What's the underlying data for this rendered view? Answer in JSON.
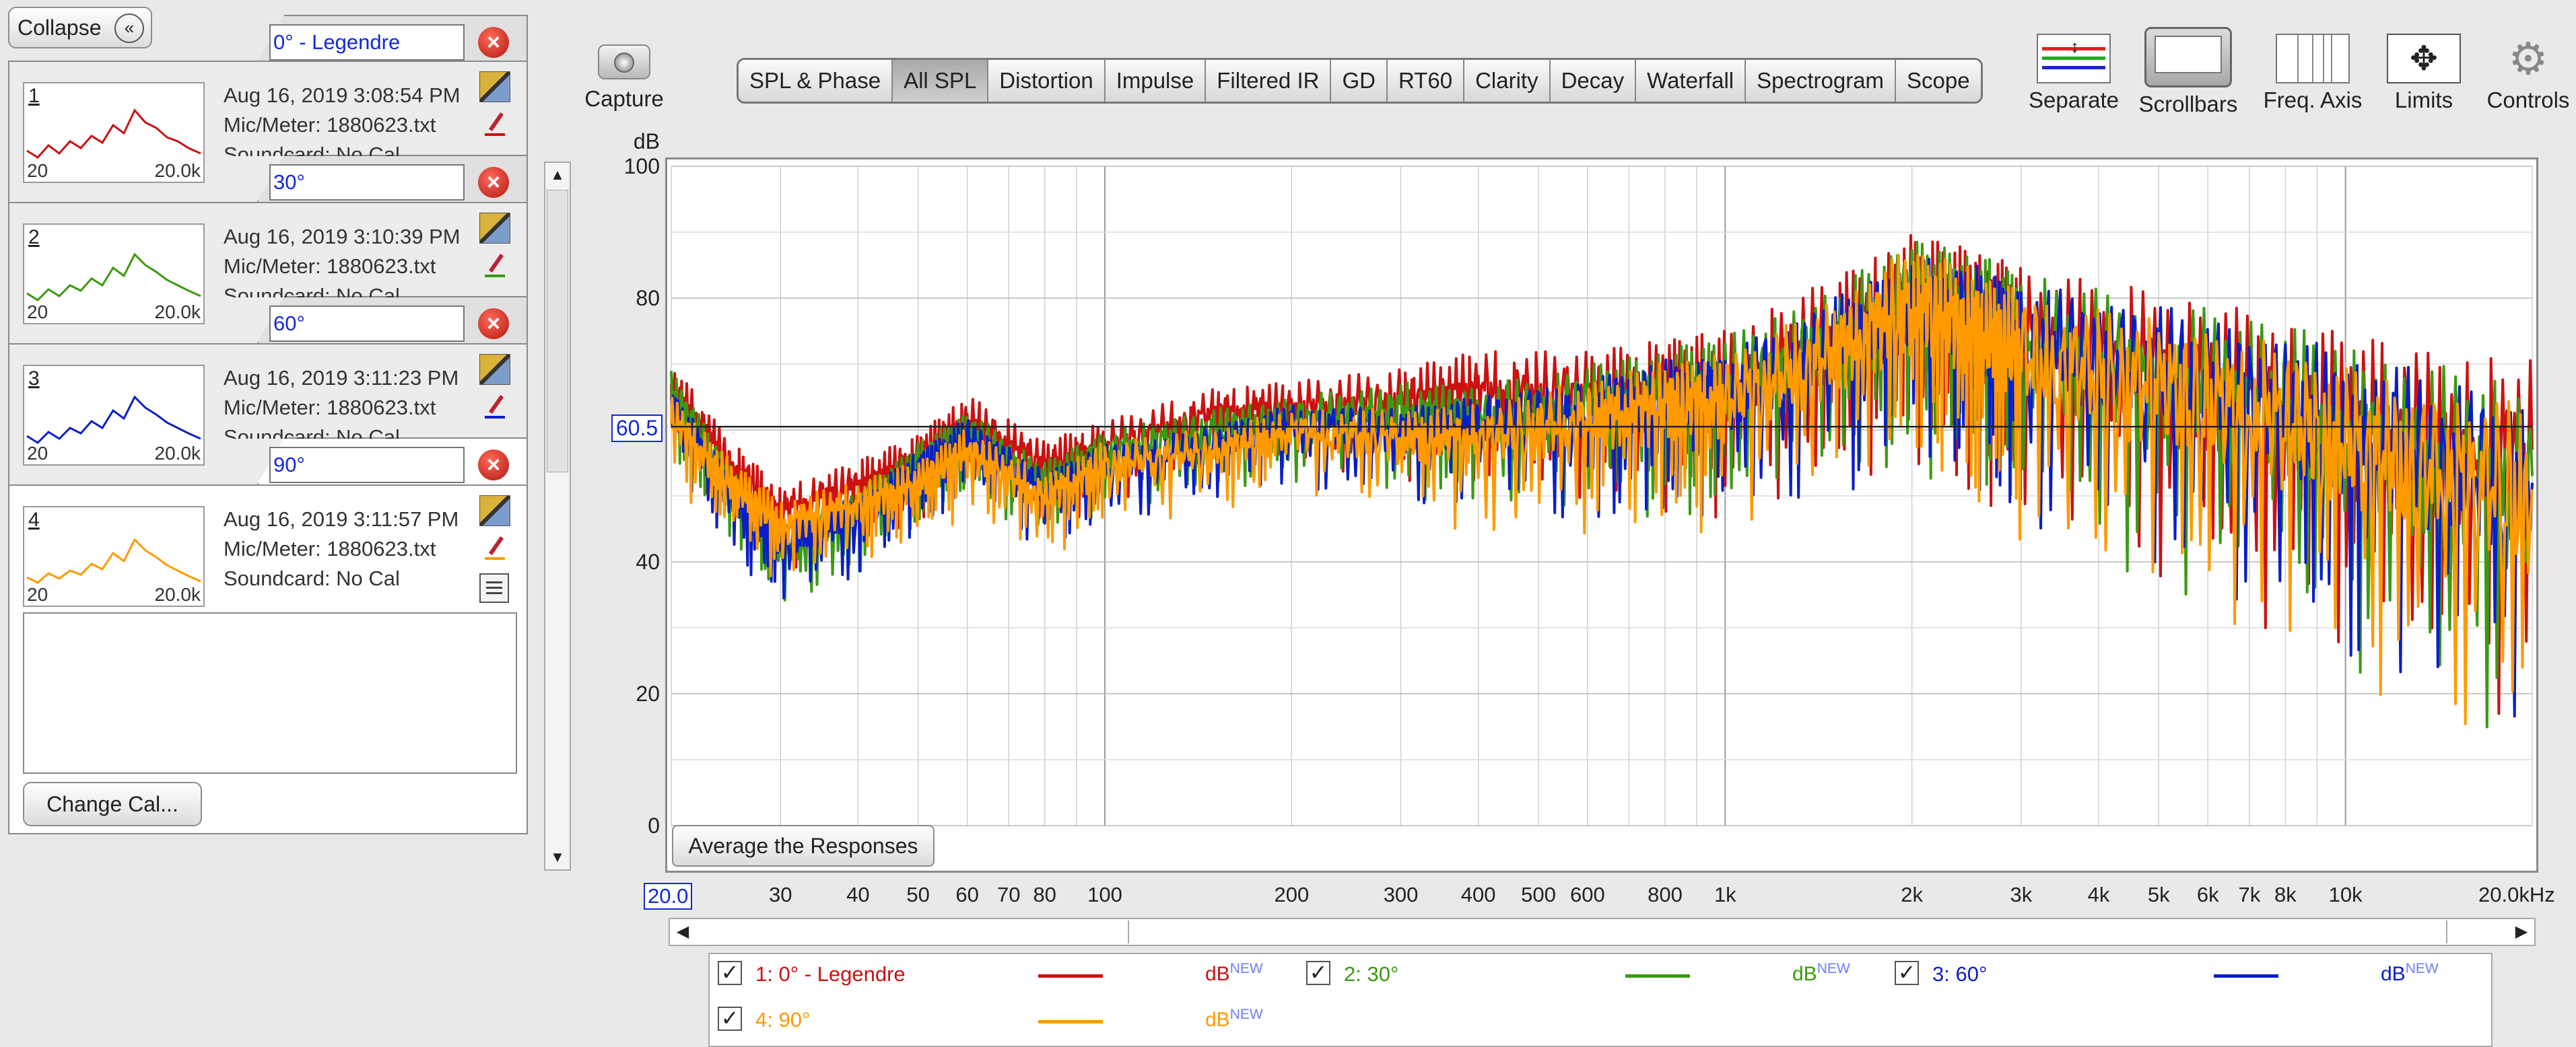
{
  "collapse_label": "Collapse",
  "measurements": [
    {
      "index": "1",
      "name": "0° - Legendre",
      "date": "Aug 16, 2019 3:08:54 PM",
      "mic": "Mic/Meter: 1880623.txt",
      "soundcard": "Soundcard: No Cal",
      "thumb_lo": "20",
      "thumb_hi": "20.0k",
      "color": "#cc1111"
    },
    {
      "index": "2",
      "name": "30°",
      "date": "Aug 16, 2019 3:10:39 PM",
      "mic": "Mic/Meter: 1880623.txt",
      "soundcard": "Soundcard: No Cal",
      "thumb_lo": "20",
      "thumb_hi": "20.0k",
      "color": "#3a9a12"
    },
    {
      "index": "3",
      "name": "60°",
      "date": "Aug 16, 2019 3:11:23 PM",
      "mic": "Mic/Meter: 1880623.txt",
      "soundcard": "Soundcard: No Cal",
      "thumb_lo": "20",
      "thumb_hi": "20.0k",
      "color": "#0a1ec8"
    },
    {
      "index": "4",
      "name": "90°",
      "date": "Aug 16, 2019 3:11:57 PM",
      "mic": "Mic/Meter: 1880623.txt",
      "soundcard": "Soundcard: No Cal",
      "thumb_lo": "20",
      "thumb_hi": "20.0k",
      "color": "#ff9a00"
    }
  ],
  "change_cal_label": "Change Cal...",
  "capture_label": "Capture",
  "tabs": [
    "SPL & Phase",
    "All SPL",
    "Distortion",
    "Impulse",
    "Filtered IR",
    "GD",
    "RT60",
    "Clarity",
    "Decay",
    "Waterfall",
    "Spectrogram",
    "Scope"
  ],
  "selected_tab": "All SPL",
  "toolbar": {
    "separate": "Separate",
    "scrollbars": "Scrollbars",
    "freq_axis": "Freq. Axis",
    "limits": "Limits",
    "controls": "Controls"
  },
  "average_label": "Average the Responses",
  "legend": [
    {
      "label": "1: 0° - Legendre",
      "db": "dB",
      "sup": "NEW",
      "color": "#cc1111"
    },
    {
      "label": "2: 30°",
      "db": "dB",
      "sup": "NEW",
      "color": "#3a9a12"
    },
    {
      "label": "3: 60°",
      "db": "dB",
      "sup": "NEW",
      "color": "#0a1ec8"
    },
    {
      "label": "4: 90°",
      "db": "dB",
      "sup": "NEW",
      "color": "#ff9a00"
    }
  ],
  "chart_data": {
    "type": "line",
    "ylabel": "dB",
    "ylim": [
      0,
      100
    ],
    "y_ticks": [
      "100",
      "80",
      "60.5",
      "40",
      "20",
      "0"
    ],
    "y_tick_values": [
      100,
      80,
      60.5,
      40,
      20,
      0
    ],
    "xlim": [
      20,
      20000
    ],
    "x_scale": "log",
    "x_ticks": [
      "20.0",
      "30",
      "40",
      "50",
      "60",
      "70",
      "80",
      "100",
      "200",
      "300",
      "400",
      "500",
      "600",
      "800",
      "1k",
      "2k",
      "3k",
      "4k",
      "5k",
      "6k",
      "7k",
      "8k",
      "10k",
      "20.0kHz"
    ],
    "x_tick_values": [
      20,
      30,
      40,
      50,
      60,
      70,
      80,
      100,
      200,
      300,
      400,
      500,
      600,
      800,
      1000,
      2000,
      3000,
      4000,
      5000,
      6000,
      7000,
      8000,
      10000,
      20000
    ],
    "cursor_db": 60.5,
    "grid": true,
    "series": [
      {
        "name": "1: 0° - Legendre",
        "color": "#cc1111",
        "x": [
          20,
          25,
          30,
          40,
          50,
          60,
          80,
          100,
          150,
          200,
          300,
          400,
          600,
          800,
          1000,
          1500,
          2000,
          2500,
          3000,
          5000,
          8000,
          12000,
          20000
        ],
        "y": [
          67,
          55,
          48,
          52,
          56,
          62,
          55,
          58,
          63,
          64,
          65,
          67,
          66,
          67,
          68,
          75,
          81,
          78,
          75,
          70,
          65,
          60,
          57
        ]
      },
      {
        "name": "2: 30°",
        "color": "#3a9a12",
        "x": [
          20,
          25,
          30,
          40,
          50,
          60,
          80,
          100,
          150,
          200,
          300,
          400,
          600,
          800,
          1000,
          1500,
          2000,
          2500,
          3000,
          5000,
          8000,
          12000,
          20000
        ],
        "y": [
          66,
          52,
          42,
          48,
          55,
          60,
          52,
          57,
          60,
          62,
          63,
          62,
          64,
          66,
          67,
          74,
          80,
          78,
          74,
          69,
          64,
          58,
          53
        ]
      },
      {
        "name": "3: 60°",
        "color": "#0a1ec8",
        "x": [
          20,
          25,
          30,
          40,
          50,
          60,
          80,
          100,
          150,
          200,
          300,
          400,
          600,
          800,
          1000,
          1500,
          2000,
          2500,
          3000,
          5000,
          8000,
          12000,
          20000
        ],
        "y": [
          64,
          50,
          43,
          47,
          54,
          59,
          51,
          55,
          58,
          61,
          60,
          61,
          63,
          65,
          66,
          73,
          79,
          77,
          74,
          69,
          64,
          58,
          52
        ]
      },
      {
        "name": "4: 90°",
        "color": "#ff9a00",
        "x": [
          20,
          25,
          30,
          40,
          50,
          60,
          80,
          100,
          150,
          200,
          300,
          400,
          600,
          800,
          1000,
          1500,
          2000,
          2500,
          3000,
          5000,
          8000,
          12000,
          20000
        ],
        "y": [
          62,
          52,
          46,
          49,
          52,
          57,
          50,
          55,
          57,
          60,
          59,
          59,
          62,
          64,
          65,
          72,
          80,
          76,
          72,
          67,
          62,
          56,
          51
        ]
      }
    ]
  }
}
